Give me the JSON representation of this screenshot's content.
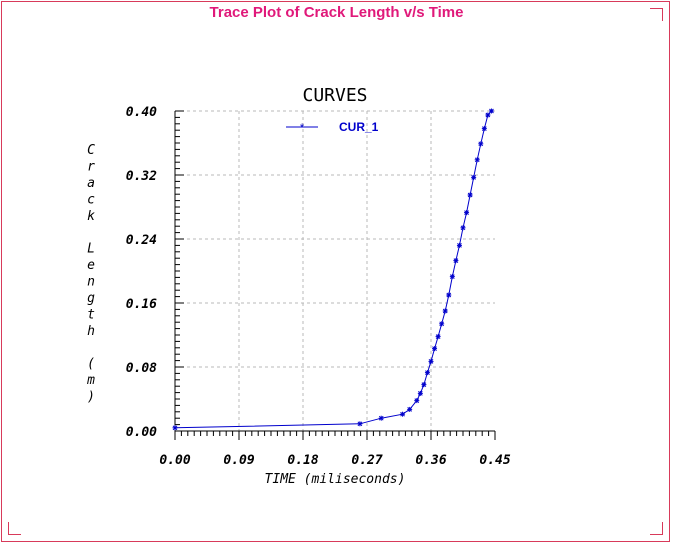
{
  "window": {
    "title": "Trace Plot of Crack Length v/s Time"
  },
  "colors": {
    "frame": "#d83a5a",
    "title": "#e0197a",
    "series": "#0000cc",
    "grid": "#b8b8b8"
  },
  "chart_data": {
    "type": "line",
    "title": "CURVES",
    "xlabel": "TIME (miliseconds)",
    "ylabel": "Crack Length (m)",
    "xlim": [
      0,
      0.45
    ],
    "ylim": [
      0,
      0.4
    ],
    "xticks": [
      "0.00",
      "0.09",
      "0.18",
      "0.27",
      "0.36",
      "0.45"
    ],
    "yticks": [
      "0.00",
      "0.08",
      "0.16",
      "0.24",
      "0.32",
      "0.40"
    ],
    "grid": true,
    "legend_position": "top",
    "series": [
      {
        "name": "CUR_1",
        "x": [
          0.0,
          0.26,
          0.29,
          0.32,
          0.33,
          0.34,
          0.345,
          0.35,
          0.355,
          0.36,
          0.365,
          0.37,
          0.375,
          0.38,
          0.385,
          0.39,
          0.395,
          0.4,
          0.405,
          0.41,
          0.415,
          0.42,
          0.425,
          0.43,
          0.435,
          0.44,
          0.445
        ],
        "y": [
          0.004,
          0.009,
          0.016,
          0.021,
          0.027,
          0.038,
          0.047,
          0.058,
          0.073,
          0.087,
          0.103,
          0.118,
          0.134,
          0.15,
          0.17,
          0.193,
          0.213,
          0.232,
          0.254,
          0.273,
          0.295,
          0.317,
          0.339,
          0.359,
          0.378,
          0.395,
          0.4
        ]
      }
    ]
  }
}
